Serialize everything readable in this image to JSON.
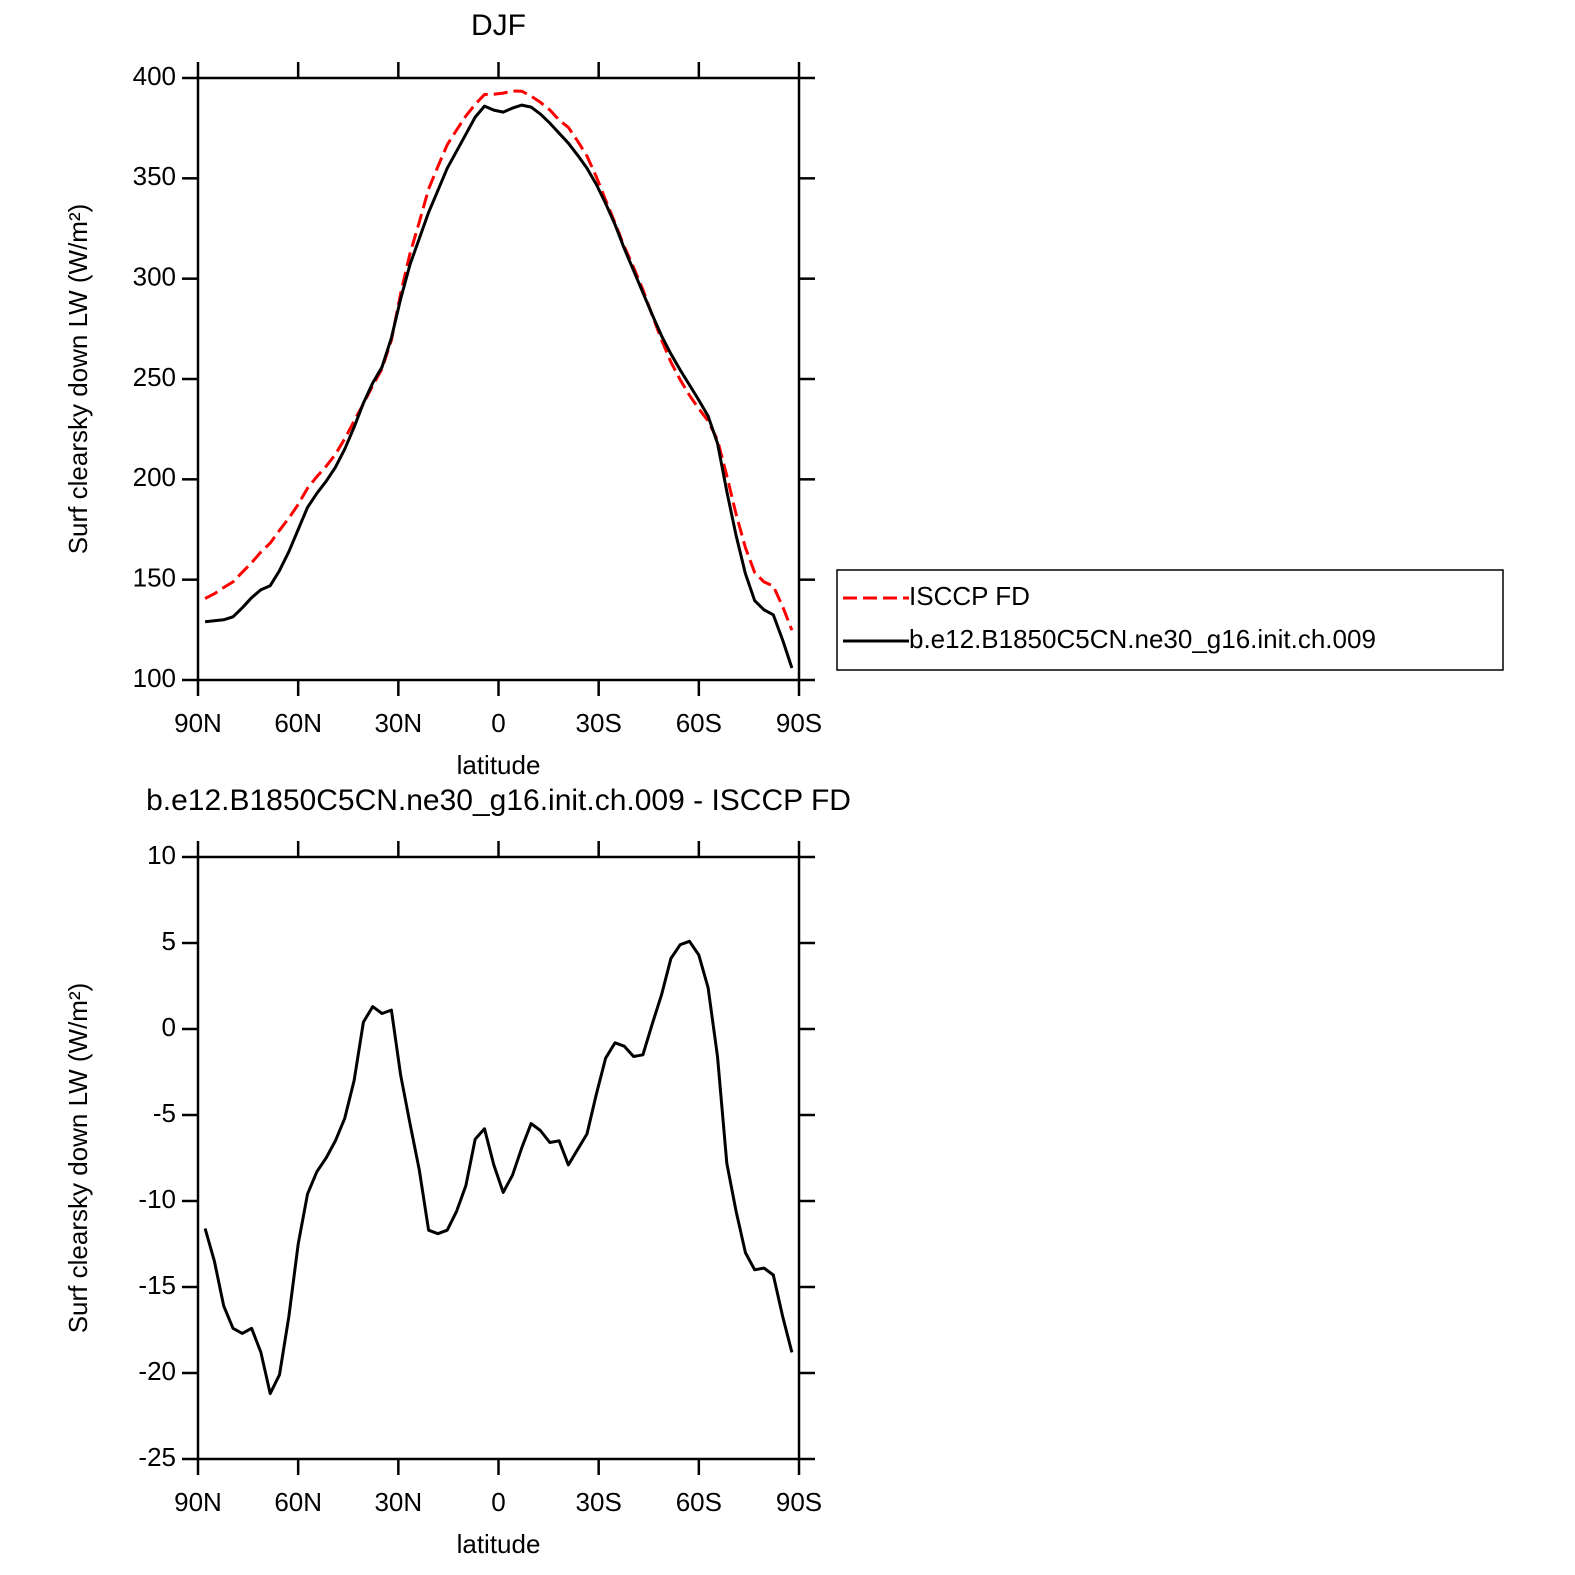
{
  "chart_data": [
    {
      "type": "line",
      "title": "DJF",
      "x_label": "latitude",
      "y_label": "Surf clearsky down LW (W/m²)",
      "x": [
        87.86,
        85.1,
        82.31,
        79.53,
        76.74,
        73.95,
        71.16,
        68.37,
        65.58,
        62.79,
        60.0,
        57.21,
        54.42,
        51.63,
        48.84,
        46.05,
        43.26,
        40.47,
        37.67,
        34.88,
        32.09,
        29.3,
        26.51,
        23.72,
        20.93,
        18.14,
        15.35,
        12.56,
        9.77,
        6.98,
        4.19,
        1.4,
        -1.4,
        -4.19,
        -6.98,
        -9.77,
        -12.56,
        -15.35,
        -18.14,
        -20.93,
        -23.72,
        -26.51,
        -29.3,
        -32.09,
        -34.88,
        -37.67,
        -40.47,
        -43.26,
        -46.05,
        -48.84,
        -51.63,
        -54.42,
        -57.21,
        -60.0,
        -62.79,
        -65.58,
        -68.37,
        -71.16,
        -73.95,
        -76.74,
        -79.53,
        -82.31,
        -85.1,
        -87.86
      ],
      "xlim": [
        90,
        -90
      ],
      "xticks": [
        {
          "value": 90,
          "label": "90N"
        },
        {
          "value": 60,
          "label": "60N"
        },
        {
          "value": 30,
          "label": "30N"
        },
        0,
        {
          "value": -30,
          "label": "30S"
        },
        {
          "value": -60,
          "label": "60S"
        },
        {
          "value": -90,
          "label": "90S"
        }
      ],
      "ylim": [
        100,
        400
      ],
      "yticks": [
        100,
        150,
        200,
        250,
        300,
        350,
        400
      ],
      "legend": "right",
      "series": [
        {
          "name": "ISCCP FD",
          "color": "#ff0000",
          "dash": "dashed",
          "values": [
            140.6,
            143,
            146.1,
            148.9,
            153.7,
            158.4,
            163.8,
            168.2,
            174.6,
            180.7,
            187.5,
            195.6,
            201.3,
            206.5,
            212.5,
            220.2,
            229,
            237.6,
            246.7,
            255.1,
            269.4,
            292.7,
            312.5,
            328.2,
            344.7,
            355.9,
            366.7,
            374.1,
            381.1,
            386.9,
            391.8,
            391.9,
            392.5,
            393.5,
            393.4,
            391,
            387.9,
            384.1,
            379,
            375.4,
            368.5,
            361.1,
            350.8,
            339.2,
            327.8,
            316,
            305.6,
            294.5,
            281.7,
            269.5,
            258.4,
            249.6,
            241.9,
            235.2,
            229.1,
            219.6,
            201.8,
            182.6,
            166,
            153.5,
            148.9,
            146.8,
            136.7,
            124.8
          ]
        },
        {
          "name": "b.e12.B1850C5CN.ne30_g16.init.ch.009",
          "color": "#000000",
          "values": [
            129,
            129.5,
            130,
            131.5,
            136,
            141,
            145,
            147,
            154.5,
            164,
            175,
            186,
            193,
            199,
            206,
            215,
            226,
            238,
            248,
            256,
            270.5,
            290,
            307,
            320,
            333,
            344,
            355,
            363.5,
            372,
            380.5,
            386,
            384,
            383,
            385,
            386.5,
            385.5,
            382,
            377.5,
            372.5,
            367.5,
            361.5,
            355,
            347,
            337.5,
            327,
            315,
            304,
            293,
            282,
            271.5,
            262.5,
            254.5,
            247,
            239.5,
            231.5,
            218,
            194,
            172,
            153,
            139.5,
            135,
            132.5,
            120,
            106
          ]
        }
      ]
    },
    {
      "type": "line",
      "title": "b.e12.B1850C5CN.ne30_g16.init.ch.009 - ISCCP FD",
      "x_label": "latitude",
      "y_label": "Surf clearsky down LW (W/m²)",
      "x": [
        87.86,
        85.1,
        82.31,
        79.53,
        76.74,
        73.95,
        71.16,
        68.37,
        65.58,
        62.79,
        60.0,
        57.21,
        54.42,
        51.63,
        48.84,
        46.05,
        43.26,
        40.47,
        37.67,
        34.88,
        32.09,
        29.3,
        26.51,
        23.72,
        20.93,
        18.14,
        15.35,
        12.56,
        9.77,
        6.98,
        4.19,
        1.4,
        -1.4,
        -4.19,
        -6.98,
        -9.77,
        -12.56,
        -15.35,
        -18.14,
        -20.93,
        -23.72,
        -26.51,
        -29.3,
        -32.09,
        -34.88,
        -37.67,
        -40.47,
        -43.26,
        -46.05,
        -48.84,
        -51.63,
        -54.42,
        -57.21,
        -60.0,
        -62.79,
        -65.58,
        -68.37,
        -71.16,
        -73.95,
        -76.74,
        -79.53,
        -82.31,
        -85.1,
        -87.86
      ],
      "xlim": [
        90,
        -90
      ],
      "xticks": [
        {
          "value": 90,
          "label": "90N"
        },
        {
          "value": 60,
          "label": "60N"
        },
        {
          "value": 30,
          "label": "30N"
        },
        0,
        {
          "value": -30,
          "label": "30S"
        },
        {
          "value": -60,
          "label": "60S"
        },
        {
          "value": -90,
          "label": "90S"
        }
      ],
      "ylim": [
        -25,
        10
      ],
      "yticks": [
        -25,
        -20,
        -15,
        -10,
        -5,
        0,
        5,
        10
      ],
      "series": [
        {
          "color": "#000000",
          "values": [
            -11.6,
            -13.5,
            -16.1,
            -17.4,
            -17.7,
            -17.4,
            -18.8,
            -21.2,
            -20.1,
            -16.7,
            -12.5,
            -9.6,
            -8.3,
            -7.5,
            -6.5,
            -5.2,
            -3.0,
            0.4,
            1.3,
            0.9,
            1.1,
            -2.7,
            -5.5,
            -8.2,
            -11.7,
            -11.9,
            -11.7,
            -10.6,
            -9.1,
            -6.4,
            -5.8,
            -7.9,
            -9.5,
            -8.5,
            -6.9,
            -5.5,
            -5.9,
            -6.6,
            -6.5,
            -7.9,
            -7.0,
            -6.1,
            -3.8,
            -1.7,
            -0.8,
            -1.0,
            -1.6,
            -1.5,
            0.3,
            2.0,
            4.1,
            4.9,
            5.1,
            4.3,
            2.4,
            -1.6,
            -7.8,
            -10.6,
            -13.0,
            -14.0,
            -13.9,
            -14.3,
            -16.7,
            -18.8
          ]
        }
      ]
    }
  ]
}
